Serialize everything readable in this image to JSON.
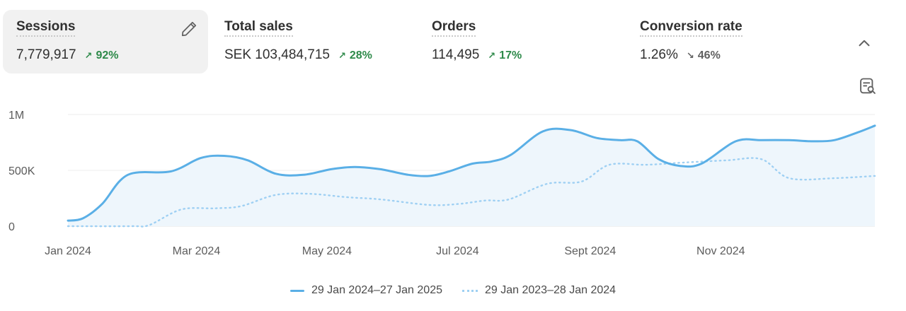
{
  "metrics": [
    {
      "title": "Sessions",
      "value": "7,779,917",
      "change": "92%",
      "direction": "up",
      "active": true
    },
    {
      "title": "Total sales",
      "value": "SEK 103,484,715",
      "change": "28%",
      "direction": "up",
      "active": false
    },
    {
      "title": "Orders",
      "value": "114,495",
      "change": "17%",
      "direction": "up",
      "active": false
    },
    {
      "title": "Conversion rate",
      "value": "1.26%",
      "change": "46%",
      "direction": "down",
      "active": false
    }
  ],
  "icons": {
    "edit": "pencil-icon",
    "collapse": "chevron-up-icon",
    "inspect": "inspect-data-icon"
  },
  "colors": {
    "primary_line": "#5aafe6",
    "comparison_line": "#9fd0f3",
    "fill": "#eef6fc",
    "up": "#2e8a4a",
    "down": "#616161"
  },
  "chart_data": {
    "type": "line",
    "x_tick_labels": [
      "Jan 2024",
      "Mar 2024",
      "May 2024",
      "Jul 2024",
      "Sept 2024",
      "Nov 2024"
    ],
    "y_tick_labels": [
      "0",
      "500K",
      "1M"
    ],
    "ylim": [
      0,
      1000000
    ],
    "grid": true,
    "legend_position": "bottom-center",
    "series": [
      {
        "name": "29 Jan 2024–27 Jan 2025",
        "style": "solid",
        "x": [
          "2024-01-01",
          "2024-01-08",
          "2024-01-17",
          "2024-01-29",
          "2024-02-18",
          "2024-03-03",
          "2024-03-14",
          "2024-03-25",
          "2024-04-07",
          "2024-04-20",
          "2024-05-03",
          "2024-05-14",
          "2024-05-26",
          "2024-06-08",
          "2024-06-18",
          "2024-06-27",
          "2024-07-08",
          "2024-07-17",
          "2024-07-26",
          "2024-08-10",
          "2024-08-23",
          "2024-09-04",
          "2024-09-15",
          "2024-09-23",
          "2024-10-03",
          "2024-10-13",
          "2024-10-23",
          "2024-11-08",
          "2024-11-20",
          "2024-12-03",
          "2024-12-14",
          "2024-12-24",
          "2025-01-04",
          "2025-01-12"
        ],
        "values": [
          50000,
          70000,
          200000,
          460000,
          490000,
          610000,
          630000,
          590000,
          470000,
          460000,
          510000,
          530000,
          510000,
          460000,
          450000,
          490000,
          560000,
          580000,
          640000,
          850000,
          860000,
          790000,
          770000,
          760000,
          600000,
          540000,
          560000,
          760000,
          770000,
          770000,
          760000,
          770000,
          840000,
          900000
        ]
      },
      {
        "name": "29 Jan 2023–28 Jan 2024",
        "style": "dotted",
        "x": [
          "2024-01-01",
          "2024-01-31",
          "2024-02-08",
          "2024-02-23",
          "2024-03-10",
          "2024-03-22",
          "2024-04-07",
          "2024-04-23",
          "2024-05-10",
          "2024-05-26",
          "2024-06-18",
          "2024-07-02",
          "2024-07-14",
          "2024-07-25",
          "2024-08-12",
          "2024-08-28",
          "2024-09-10",
          "2024-09-27",
          "2024-10-15",
          "2024-11-04",
          "2024-11-20",
          "2024-12-03",
          "2024-12-24",
          "2025-01-12"
        ],
        "values": [
          0,
          0,
          10000,
          150000,
          160000,
          180000,
          280000,
          290000,
          260000,
          240000,
          190000,
          200000,
          230000,
          240000,
          380000,
          400000,
          550000,
          550000,
          570000,
          590000,
          600000,
          430000,
          430000,
          450000
        ]
      }
    ]
  }
}
